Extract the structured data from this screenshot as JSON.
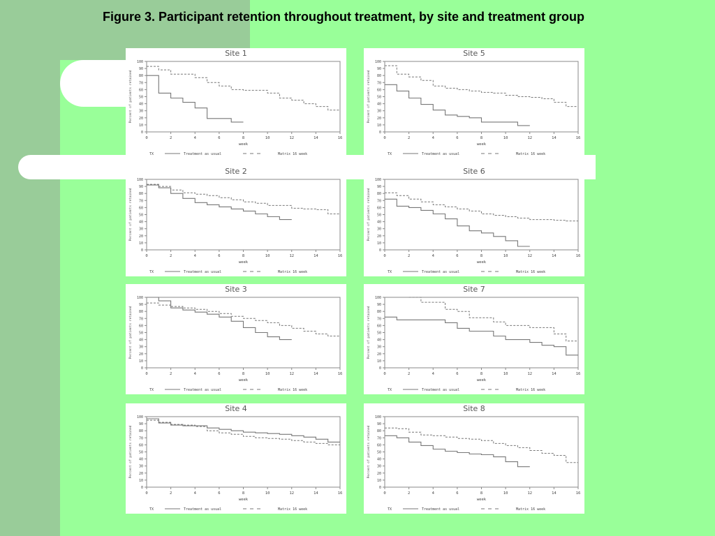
{
  "page": {
    "title": "Figure 3. Participant retention throughout treatment, by site and treatment group"
  },
  "colors": {
    "background": "#99ff99",
    "band": "#99cc99",
    "panel": "#ffffff",
    "line": "#777777"
  },
  "legend": {
    "key": "TX",
    "tau": "Treatment as usual",
    "matrix": "Matrix 16 week"
  },
  "chart_data": [
    {
      "type": "line",
      "step": true,
      "title": "Site 1",
      "xlabel": "week",
      "ylabel": "Percent of patients retained",
      "xlim": [
        0,
        16
      ],
      "ylim": [
        0,
        100
      ],
      "xticks": [
        0,
        2,
        4,
        6,
        8,
        10,
        12,
        14,
        16
      ],
      "yticks": [
        0,
        10,
        20,
        30,
        40,
        50,
        60,
        70,
        80,
        90,
        100
      ],
      "series": [
        {
          "name": "Treatment as usual",
          "style": "solid",
          "x": [
            0,
            1,
            2,
            3,
            4,
            5,
            7,
            8
          ],
          "y": [
            80,
            55,
            48,
            42,
            34,
            19,
            14,
            14
          ]
        },
        {
          "name": "Matrix 16 week",
          "style": "dashed",
          "x": [
            0,
            1,
            2,
            4,
            5,
            6,
            7,
            8,
            10,
            11,
            12,
            13,
            14,
            15,
            16
          ],
          "y": [
            93,
            88,
            82,
            77,
            70,
            65,
            60,
            59,
            55,
            48,
            45,
            40,
            36,
            31,
            31
          ]
        }
      ]
    },
    {
      "type": "line",
      "step": true,
      "title": "Site 2",
      "xlabel": "week",
      "ylabel": "Percent of patients retained",
      "xlim": [
        0,
        16
      ],
      "ylim": [
        0,
        100
      ],
      "xticks": [
        0,
        2,
        4,
        6,
        8,
        10,
        12,
        14,
        16
      ],
      "yticks": [
        0,
        10,
        20,
        30,
        40,
        50,
        60,
        70,
        80,
        90,
        100
      ],
      "series": [
        {
          "name": "Treatment as usual",
          "style": "solid",
          "x": [
            0,
            1,
            2,
            3,
            4,
            5,
            6,
            7,
            8,
            9,
            10,
            11,
            12
          ],
          "y": [
            92,
            88,
            80,
            73,
            67,
            64,
            61,
            58,
            55,
            51,
            47,
            43,
            43
          ]
        },
        {
          "name": "Matrix 16 week",
          "style": "dashed",
          "x": [
            0,
            1,
            2,
            3,
            4,
            5,
            6,
            7,
            8,
            9,
            10,
            12,
            13,
            14,
            15,
            16
          ],
          "y": [
            93,
            90,
            85,
            81,
            79,
            77,
            74,
            71,
            68,
            66,
            63,
            59,
            58,
            57,
            51,
            51
          ]
        }
      ]
    },
    {
      "type": "line",
      "step": true,
      "title": "Site 3",
      "xlabel": "week",
      "ylabel": "Percent of patients retained",
      "xlim": [
        0,
        16
      ],
      "ylim": [
        0,
        100
      ],
      "xticks": [
        0,
        2,
        4,
        6,
        8,
        10,
        12,
        14,
        16
      ],
      "yticks": [
        0,
        10,
        20,
        30,
        40,
        50,
        60,
        70,
        80,
        90,
        100
      ],
      "series": [
        {
          "name": "Treatment as usual",
          "style": "solid",
          "x": [
            0,
            1,
            2,
            3,
            4,
            5,
            6,
            7,
            8,
            9,
            10,
            11,
            12
          ],
          "y": [
            100,
            95,
            85,
            82,
            79,
            76,
            72,
            66,
            57,
            50,
            44,
            40,
            40
          ]
        },
        {
          "name": "Matrix 16 week",
          "style": "dashed",
          "x": [
            0,
            1,
            2,
            3,
            4,
            5,
            6,
            7,
            8,
            9,
            10,
            11,
            12,
            13,
            14,
            15,
            16
          ],
          "y": [
            92,
            89,
            87,
            85,
            83,
            80,
            77,
            73,
            70,
            67,
            64,
            60,
            56,
            52,
            48,
            45,
            45
          ]
        }
      ]
    },
    {
      "type": "line",
      "step": true,
      "title": "Site 4",
      "xlabel": "week",
      "ylabel": "Percent of patients retained",
      "xlim": [
        0,
        16
      ],
      "ylim": [
        0,
        100
      ],
      "xticks": [
        0,
        2,
        4,
        6,
        8,
        10,
        12,
        14,
        16
      ],
      "yticks": [
        0,
        10,
        20,
        30,
        40,
        50,
        60,
        70,
        80,
        90,
        100
      ],
      "series": [
        {
          "name": "Treatment as usual",
          "style": "solid",
          "x": [
            0,
            1,
            2,
            3,
            4,
            5,
            6,
            7,
            8,
            9,
            10,
            11,
            12,
            13,
            14,
            15,
            16
          ],
          "y": [
            97,
            91,
            88,
            87,
            87,
            84,
            82,
            80,
            78,
            77,
            76,
            75,
            73,
            71,
            68,
            64,
            64
          ]
        },
        {
          "name": "Matrix 16 week",
          "style": "dashed",
          "x": [
            0,
            1,
            2,
            3,
            4,
            5,
            6,
            7,
            8,
            9,
            10,
            11,
            12,
            13,
            14,
            15,
            16
          ],
          "y": [
            95,
            92,
            89,
            88,
            86,
            80,
            77,
            75,
            72,
            70,
            69,
            68,
            66,
            64,
            62,
            60,
            60
          ]
        }
      ]
    },
    {
      "type": "line",
      "step": true,
      "title": "Site 5",
      "xlabel": "week",
      "ylabel": "Percent of patients retained",
      "xlim": [
        0,
        16
      ],
      "ylim": [
        0,
        100
      ],
      "xticks": [
        0,
        2,
        4,
        6,
        8,
        10,
        12,
        14,
        16
      ],
      "yticks": [
        0,
        10,
        20,
        30,
        40,
        50,
        60,
        70,
        80,
        90,
        100
      ],
      "series": [
        {
          "name": "Treatment as usual",
          "style": "solid",
          "x": [
            0,
            1,
            2,
            3,
            4,
            5,
            6,
            7,
            8,
            9,
            10,
            11,
            12
          ],
          "y": [
            67,
            58,
            48,
            39,
            31,
            24,
            22,
            20,
            14,
            14,
            14,
            9,
            9
          ]
        },
        {
          "name": "Matrix 16 week",
          "style": "dashed",
          "x": [
            0,
            1,
            2,
            3,
            4,
            5,
            6,
            7,
            8,
            9,
            10,
            11,
            12,
            13,
            14,
            15,
            16
          ],
          "y": [
            94,
            82,
            78,
            73,
            65,
            62,
            60,
            58,
            56,
            55,
            52,
            50,
            49,
            47,
            42,
            36,
            36
          ]
        }
      ]
    },
    {
      "type": "line",
      "step": true,
      "title": "Site 6",
      "xlabel": "week",
      "ylabel": "Percent of patients retained",
      "xlim": [
        0,
        16
      ],
      "ylim": [
        0,
        100
      ],
      "xticks": [
        0,
        2,
        4,
        6,
        8,
        10,
        12,
        14,
        16
      ],
      "yticks": [
        0,
        10,
        20,
        30,
        40,
        50,
        60,
        70,
        80,
        90,
        100
      ],
      "series": [
        {
          "name": "Treatment as usual",
          "style": "solid",
          "x": [
            0,
            1,
            2,
            3,
            4,
            5,
            6,
            7,
            8,
            9,
            10,
            11,
            12
          ],
          "y": [
            72,
            62,
            60,
            56,
            51,
            44,
            34,
            27,
            24,
            19,
            13,
            5,
            5
          ]
        },
        {
          "name": "Matrix 16 week",
          "style": "dashed",
          "x": [
            0,
            1,
            2,
            3,
            4,
            5,
            6,
            7,
            8,
            9,
            10,
            11,
            12,
            13,
            14,
            15,
            16
          ],
          "y": [
            81,
            77,
            72,
            68,
            64,
            61,
            58,
            55,
            51,
            49,
            47,
            45,
            43,
            43,
            42,
            41,
            41
          ]
        }
      ]
    },
    {
      "type": "line",
      "step": true,
      "title": "Site 7",
      "xlabel": "week",
      "ylabel": "Percent of patients retained",
      "xlim": [
        0,
        16
      ],
      "ylim": [
        0,
        100
      ],
      "xticks": [
        0,
        2,
        4,
        6,
        8,
        10,
        12,
        14,
        16
      ],
      "yticks": [
        0,
        10,
        20,
        30,
        40,
        50,
        60,
        70,
        80,
        90,
        100
      ],
      "series": [
        {
          "name": "Treatment as usual",
          "style": "solid",
          "x": [
            0,
            1,
            5,
            6,
            7,
            9,
            10,
            12,
            13,
            14,
            15,
            16
          ],
          "y": [
            72,
            68,
            64,
            56,
            52,
            45,
            40,
            36,
            32,
            30,
            18,
            18
          ]
        },
        {
          "name": "Matrix 16 week",
          "style": "dashed",
          "x": [
            2,
            3,
            5,
            6,
            7,
            9,
            10,
            12,
            14,
            15,
            16
          ],
          "y": [
            100,
            93,
            83,
            80,
            71,
            65,
            60,
            57,
            48,
            38,
            38
          ]
        }
      ]
    },
    {
      "type": "line",
      "step": true,
      "title": "Site 8",
      "xlabel": "week",
      "ylabel": "Percent of patients retained",
      "xlim": [
        0,
        16
      ],
      "ylim": [
        0,
        100
      ],
      "xticks": [
        0,
        2,
        4,
        6,
        8,
        10,
        12,
        14,
        16
      ],
      "yticks": [
        0,
        10,
        20,
        30,
        40,
        50,
        60,
        70,
        80,
        90,
        100
      ],
      "series": [
        {
          "name": "Treatment as usual",
          "style": "solid",
          "x": [
            0,
            1,
            2,
            3,
            4,
            5,
            6,
            7,
            8,
            9,
            10,
            11,
            12
          ],
          "y": [
            73,
            70,
            64,
            59,
            54,
            51,
            49,
            47,
            46,
            43,
            36,
            29,
            29
          ]
        },
        {
          "name": "Matrix 16 week",
          "style": "dashed",
          "x": [
            0,
            1,
            2,
            3,
            4,
            5,
            6,
            7,
            8,
            9,
            10,
            11,
            12,
            13,
            14,
            15,
            16
          ],
          "y": [
            84,
            83,
            78,
            74,
            73,
            71,
            69,
            68,
            66,
            62,
            59,
            56,
            52,
            48,
            45,
            35,
            35
          ]
        }
      ]
    }
  ]
}
